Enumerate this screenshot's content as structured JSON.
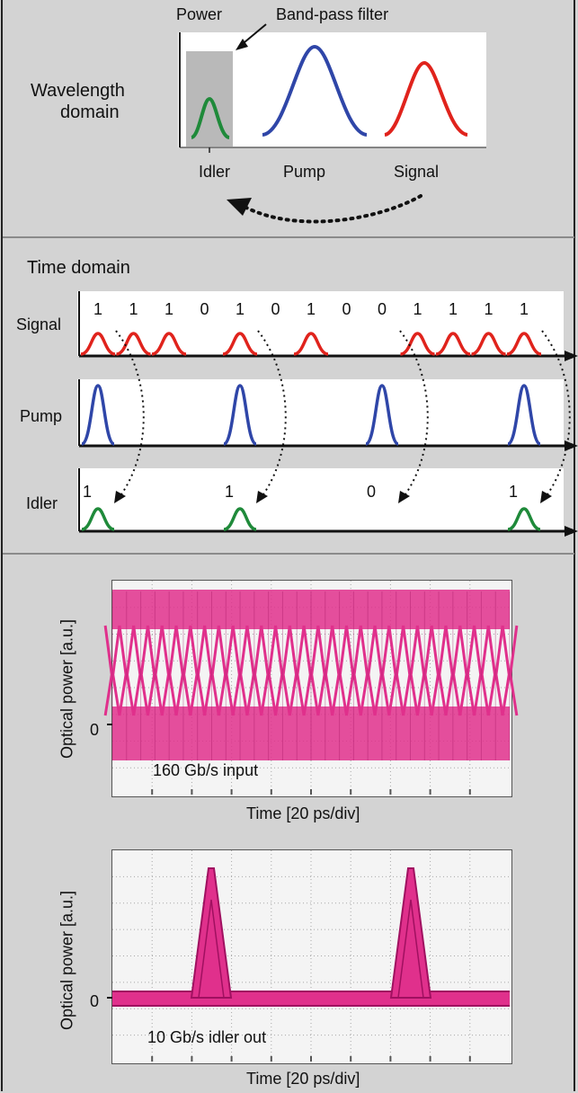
{
  "wavelength": {
    "power_label": "Power",
    "filter_label": "Band-pass filter",
    "domain_label_line1": "Wavelength",
    "domain_label_line2": "domain",
    "idler_label": "Idler",
    "pump_label": "Pump",
    "signal_label": "Signal",
    "colors": {
      "idler": "#1f8a3a",
      "pump": "#2f46a8",
      "signal": "#e0231c",
      "filter": "#b9b9b9"
    }
  },
  "time": {
    "title": "Time domain",
    "signal_label": "Signal",
    "pump_label": "Pump",
    "idler_label": "Idler",
    "signal_bits": [
      "1",
      "1",
      "1",
      "0",
      "1",
      "0",
      "1",
      "0",
      "0",
      "1",
      "1",
      "1",
      "1"
    ],
    "pump_pulse_slots": [
      0,
      4,
      8,
      12
    ],
    "idler_bits": [
      "1",
      "1",
      "0",
      "1"
    ]
  },
  "eye_top": {
    "ylabel": "Optical power [a.u.]",
    "zero_label": "0",
    "xlabel": "Time [20 ps/div]",
    "caption": "160 Gb/s input"
  },
  "eye_bottom": {
    "ylabel": "Optical power [a.u.]",
    "zero_label": "0",
    "xlabel": "Time [20 ps/div]",
    "caption": "10 Gb/s idler out"
  },
  "colors": {
    "eye": "#e0308c",
    "eye_dark": "#a01060",
    "grid": "#a8a8a8"
  }
}
